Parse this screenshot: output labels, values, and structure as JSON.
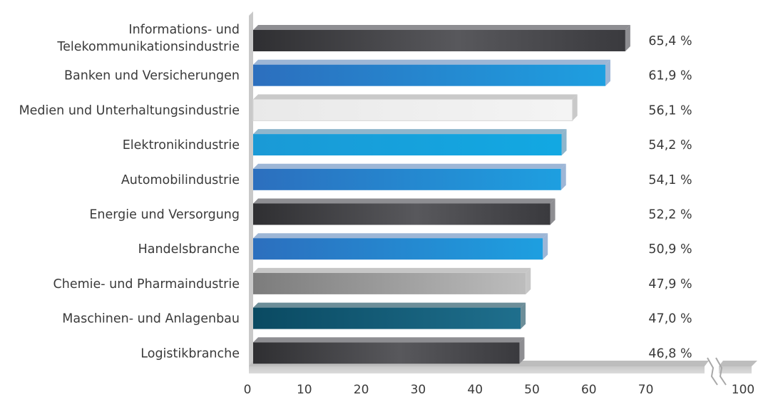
{
  "chart_data": {
    "type": "bar",
    "orientation": "horizontal",
    "title": "",
    "xlabel": "",
    "ylabel": "",
    "categories": [
      "Informations- und Telekommunikationsindustrie",
      "Banken und Versicherungen",
      "Medien und Unterhaltungsindustrie",
      "Elektronikindustrie",
      "Automobilindustrie",
      "Energie und Versorgung",
      "Handelsbranche",
      "Chemie- und Pharmaindustrie",
      "Maschinen- und Anlagenbau",
      "Logistikbranche"
    ],
    "category_lines": [
      [
        "Informations- und",
        "Telekommunikationsindustrie"
      ],
      [
        "Banken und Versicherungen"
      ],
      [
        "Medien und Unterhaltungsindustrie"
      ],
      [
        "Elektronikindustrie"
      ],
      [
        "Automobilindustrie"
      ],
      [
        "Energie und Versorgung"
      ],
      [
        "Handelsbranche"
      ],
      [
        "Chemie- und Pharmaindustrie"
      ],
      [
        "Maschinen- und Anlagenbau"
      ],
      [
        "Logistikbranche"
      ]
    ],
    "values": [
      65.4,
      61.9,
      56.1,
      54.2,
      54.1,
      52.2,
      50.9,
      47.9,
      47.0,
      46.8
    ],
    "value_labels": [
      "65,4 %",
      "61,9 %",
      "56,1 %",
      "54,2 %",
      "54,1 %",
      "52,2 %",
      "50,9 %",
      "47,9 %",
      "47,0 %",
      "46,8 %"
    ],
    "bar_styles": [
      "dark",
      "blue",
      "light",
      "cyan",
      "blue",
      "dark",
      "blue",
      "gray",
      "teal",
      "dark"
    ],
    "xlim": [
      0,
      100
    ],
    "x_ticks": [
      "0",
      "10",
      "20",
      "30",
      "40",
      "50",
      "60",
      "70",
      "100"
    ],
    "axis_break": true,
    "grid": false,
    "legend": "none"
  }
}
